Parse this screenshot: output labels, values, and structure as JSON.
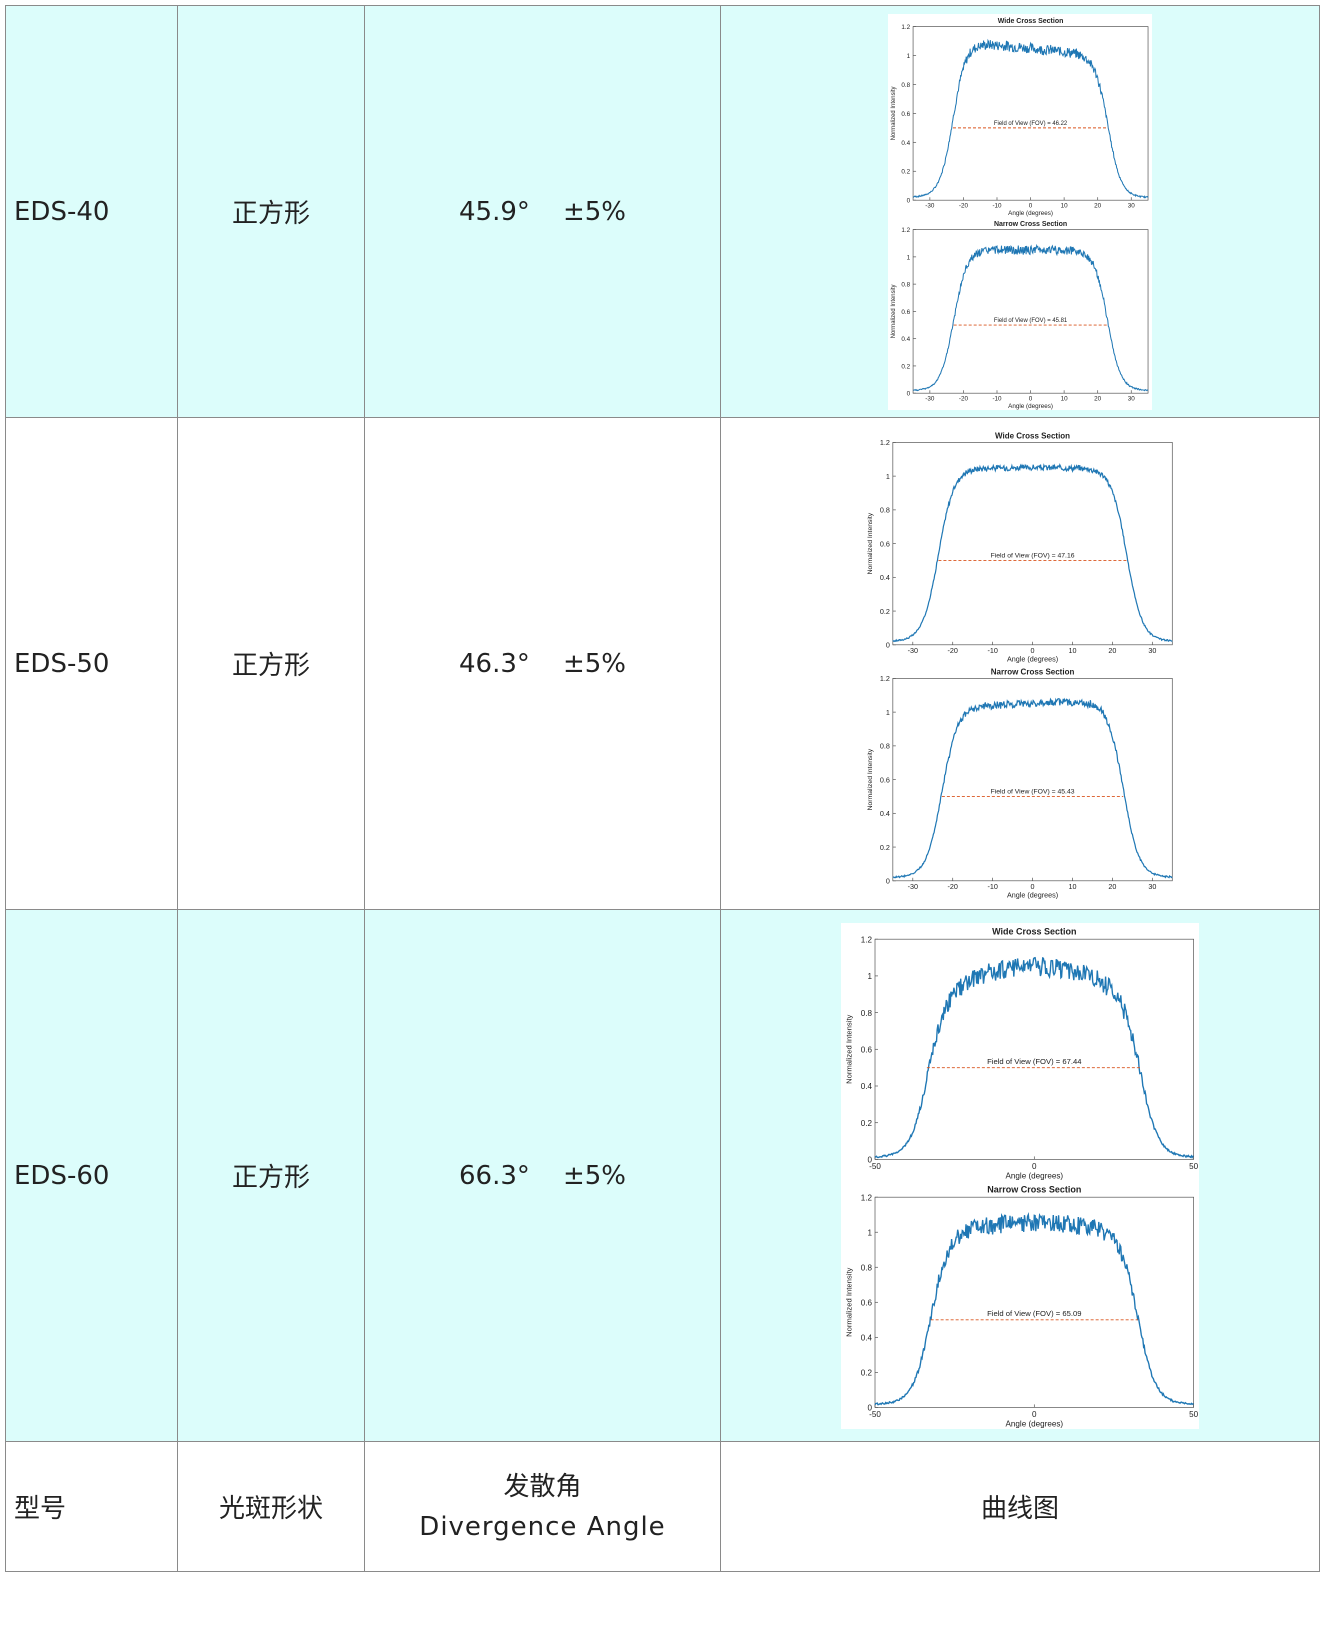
{
  "rows": [
    {
      "model": "EDS-40",
      "shape": "正方形",
      "angle": "45.9°",
      "tolerance": "±5%",
      "charts": [
        {
          "title": "Wide Cross Section",
          "fov_label": "Field of View (FOV) = 46.22",
          "x_min": -35,
          "x_max": 35,
          "x_ticks": [
            "-30",
            "-20",
            "-10",
            "0",
            "10",
            "20",
            "30"
          ],
          "x_tick_values": [
            -30,
            -20,
            -10,
            0,
            10,
            20,
            30
          ],
          "y_ticks": [
            "0",
            "0.2",
            "0.4",
            "0.6",
            "0.8",
            "1",
            "1.2"
          ],
          "y_tick_values": [
            0,
            0.2,
            0.4,
            0.6,
            0.8,
            1,
            1.2
          ],
          "xlabel": "Angle (degrees)",
          "ylabel": "Normalized Intensity",
          "fov": 46.22,
          "noise": 0.035,
          "tilt": -0.05
        },
        {
          "title": "Narrow Cross Section",
          "fov_label": "Field of View (FOV) = 45.81",
          "x_min": -35,
          "x_max": 35,
          "x_ticks": [
            "-30",
            "-20",
            "-10",
            "0",
            "10",
            "20",
            "30"
          ],
          "x_tick_values": [
            -30,
            -20,
            -10,
            0,
            10,
            20,
            30
          ],
          "y_ticks": [
            "0",
            "0.2",
            "0.4",
            "0.6",
            "0.8",
            "1",
            "1.2"
          ],
          "y_tick_values": [
            0,
            0.2,
            0.4,
            0.6,
            0.8,
            1,
            1.2
          ],
          "xlabel": "Angle (degrees)",
          "ylabel": "Normalized Intensity",
          "fov": 45.81,
          "noise": 0.03,
          "tilt": 0.0
        }
      ]
    },
    {
      "model": "EDS-50",
      "shape": "正方形",
      "angle": "46.3°",
      "tolerance": "±5%",
      "charts": [
        {
          "title": "Wide Cross Section",
          "fov_label": "Field of View (FOV) = 47.16",
          "x_min": -35,
          "x_max": 35,
          "x_ticks": [
            "-30",
            "-20",
            "-10",
            "0",
            "10",
            "20",
            "30"
          ],
          "x_tick_values": [
            -30,
            -20,
            -10,
            0,
            10,
            20,
            30
          ],
          "y_ticks": [
            "0",
            "0.2",
            "0.4",
            "0.6",
            "0.8",
            "1",
            "1.2"
          ],
          "y_tick_values": [
            0,
            0.2,
            0.4,
            0.6,
            0.8,
            1,
            1.2
          ],
          "xlabel": "Angle (degrees)",
          "ylabel": "Normalized Intensity",
          "fov": 47.16,
          "noise": 0.015,
          "tilt": 0.0
        },
        {
          "title": "Narrow Cross Section",
          "fov_label": "Field of View (FOV) = 45.43",
          "x_min": -35,
          "x_max": 35,
          "x_ticks": [
            "-30",
            "-20",
            "-10",
            "0",
            "10",
            "20",
            "30"
          ],
          "x_tick_values": [
            -30,
            -20,
            -10,
            0,
            10,
            20,
            30
          ],
          "y_ticks": [
            "0",
            "0.2",
            "0.4",
            "0.6",
            "0.8",
            "1",
            "1.2"
          ],
          "y_tick_values": [
            0,
            0.2,
            0.4,
            0.6,
            0.8,
            1,
            1.2
          ],
          "xlabel": "Angle (degrees)",
          "ylabel": "Normalized Intensity",
          "fov": 45.43,
          "noise": 0.02,
          "tilt": 0.02
        }
      ]
    },
    {
      "model": "EDS-60",
      "shape": "正方形",
      "angle": "66.3°",
      "tolerance": "±5%",
      "charts": [
        {
          "title": "Wide Cross Section",
          "fov_label": "Field of View (FOV) = 67.44",
          "x_min": -50,
          "x_max": 50,
          "x_ticks": [
            "-50",
            "0",
            "50"
          ],
          "x_tick_values": [
            -50,
            0,
            50
          ],
          "y_ticks": [
            "0",
            "0.2",
            "0.4",
            "0.6",
            "0.8",
            "1",
            "1.2"
          ],
          "y_tick_values": [
            0,
            0.2,
            0.4,
            0.6,
            0.8,
            1,
            1.2
          ],
          "xlabel": "Angle (degrees)",
          "ylabel": "Normalized Intensity",
          "fov": 67.44,
          "noise": 0.05,
          "tilt": 0.0,
          "dome": 0.18
        },
        {
          "title": "Narrow Cross Section",
          "fov_label": "Field of View (FOV) = 65.09",
          "x_min": -50,
          "x_max": 50,
          "x_ticks": [
            "-50",
            "0",
            "50"
          ],
          "x_tick_values": [
            -50,
            0,
            50
          ],
          "y_ticks": [
            "0",
            "0.2",
            "0.4",
            "0.6",
            "0.8",
            "1",
            "1.2"
          ],
          "y_tick_values": [
            0,
            0.2,
            0.4,
            0.6,
            0.8,
            1,
            1.2
          ],
          "xlabel": "Angle (degrees)",
          "ylabel": "Normalized Intensity",
          "fov": 65.09,
          "noise": 0.05,
          "tilt": 0.0,
          "dome": 0.05
        }
      ]
    }
  ],
  "header": {
    "model": "型号",
    "shape": "光斑形状",
    "angle_cn": "发散角",
    "angle_en": "Divergence Angle",
    "curve": "曲线图"
  },
  "colors": {
    "cyan_row": "#dcfdfb",
    "curve": "#1f77b4",
    "fov_line": "#d9541e"
  }
}
